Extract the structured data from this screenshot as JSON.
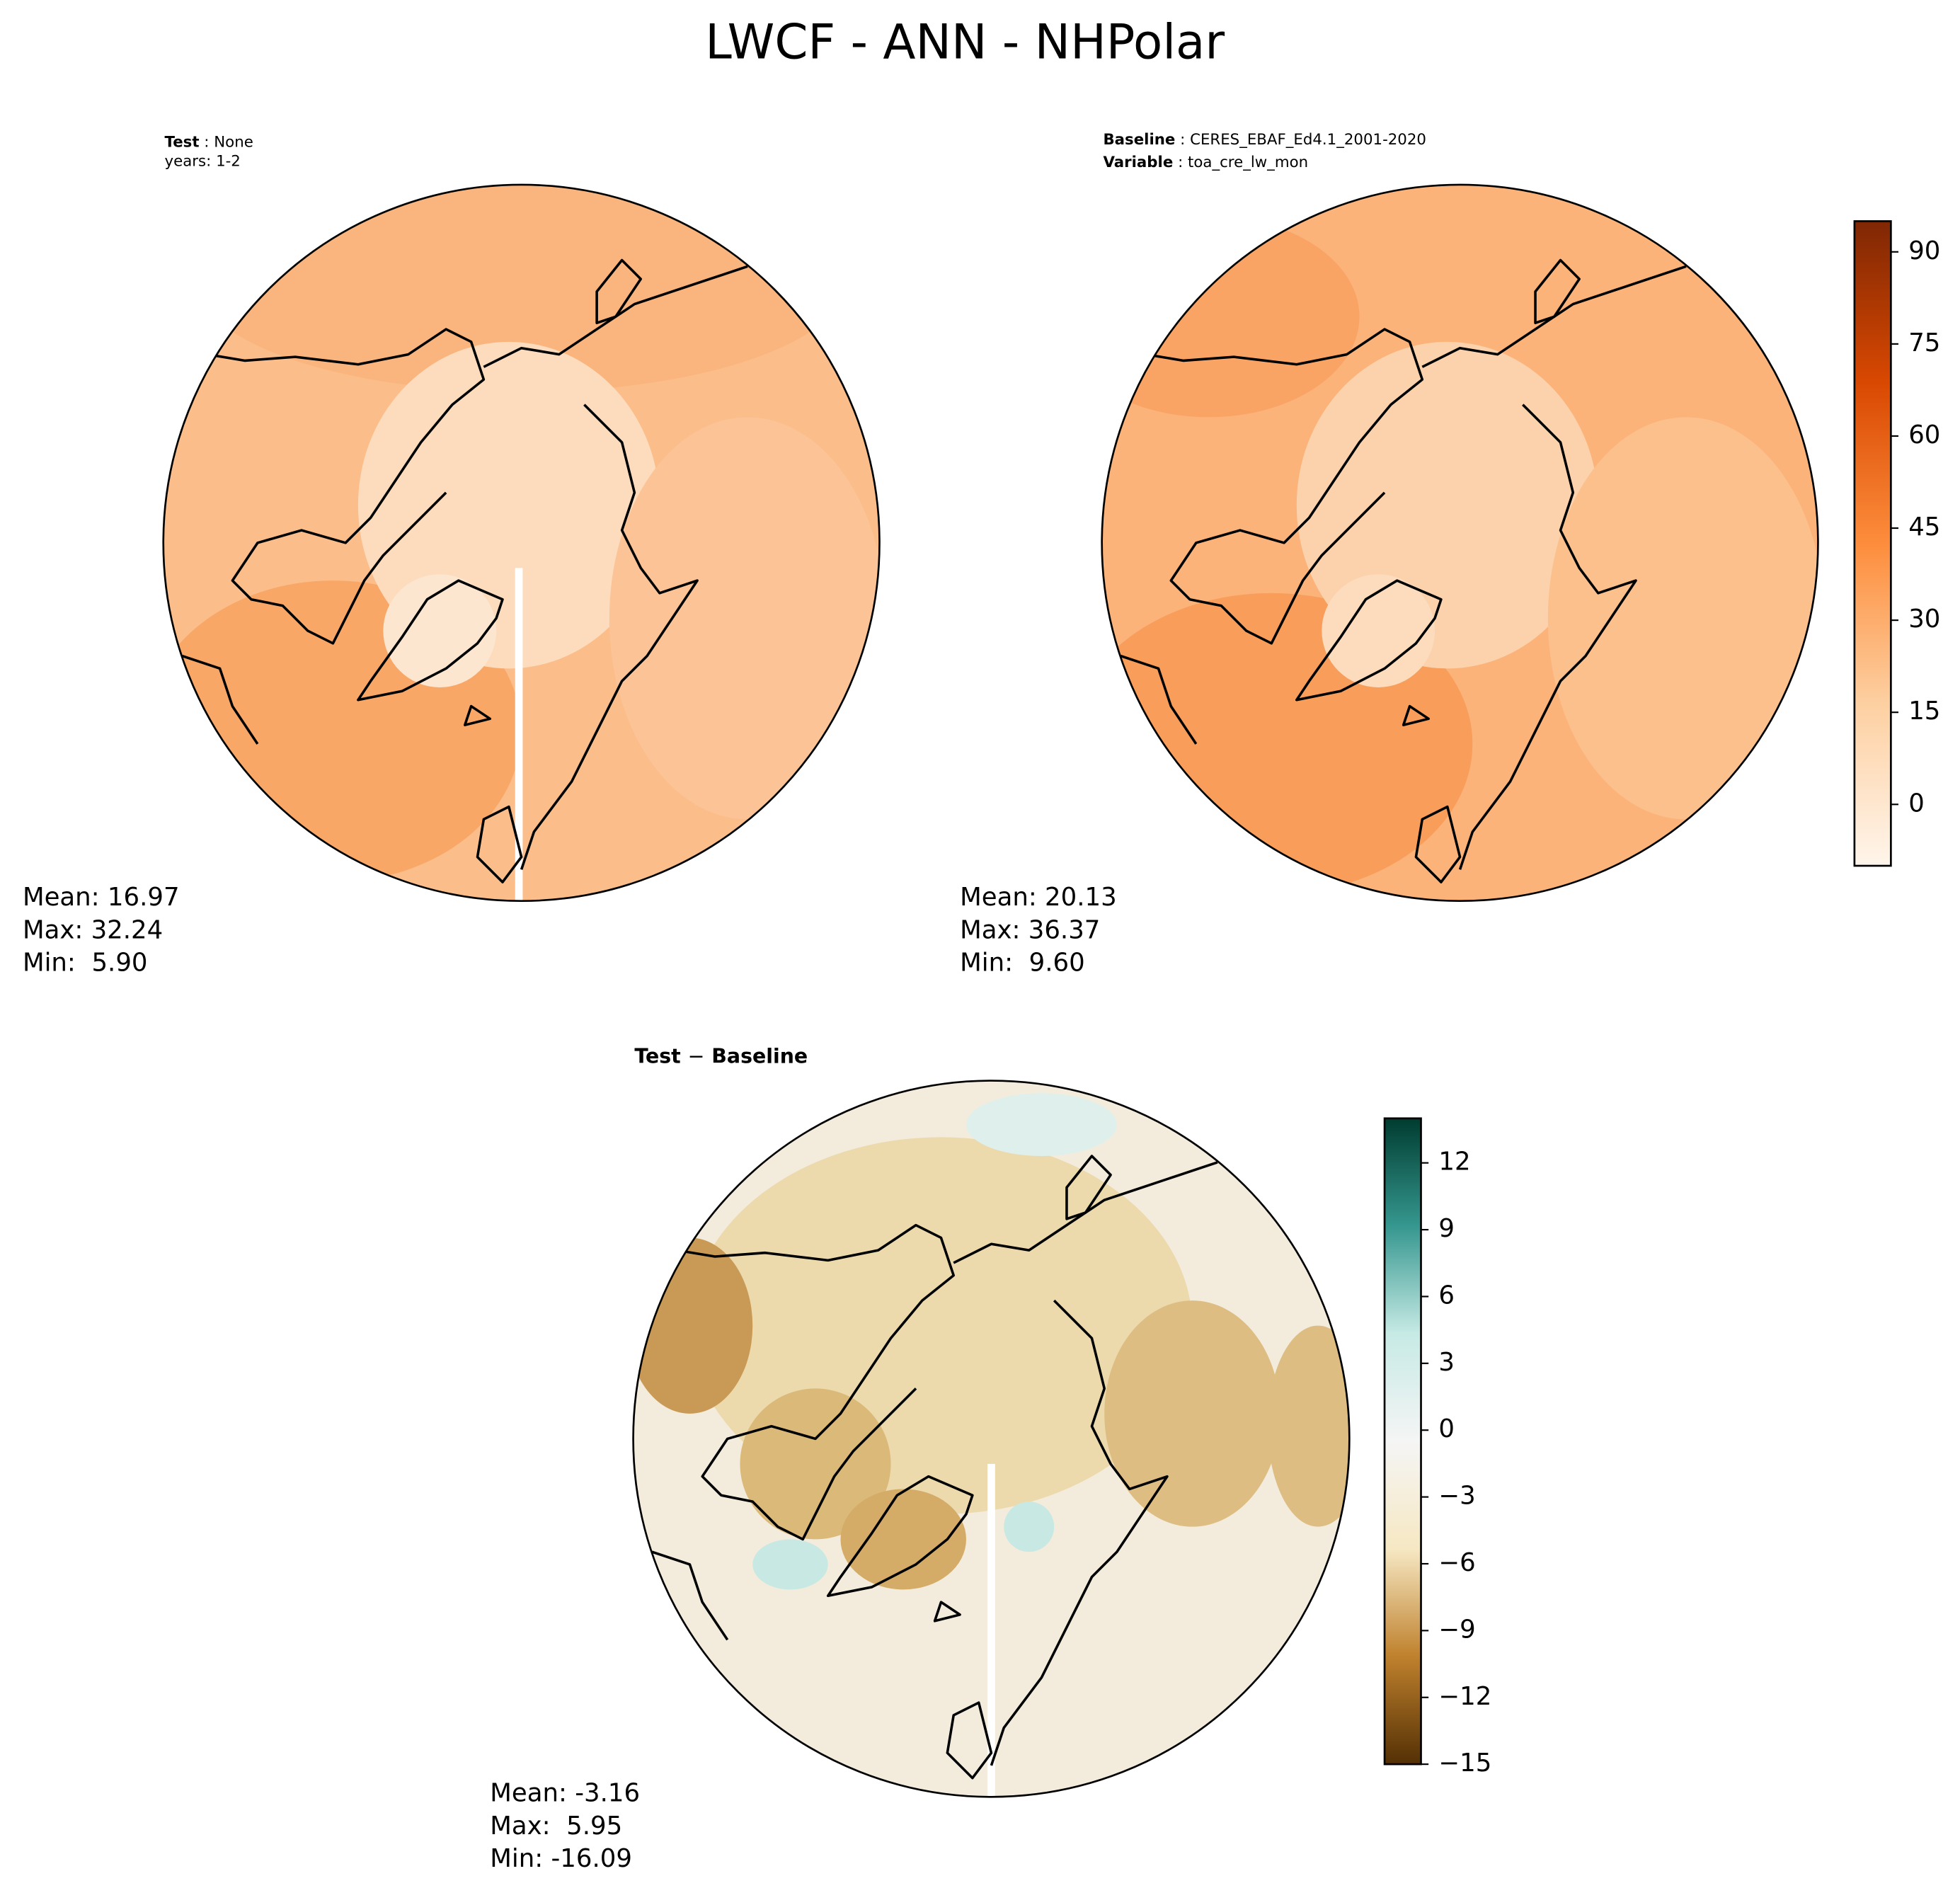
{
  "title": "LWCF - ANN - NHPolar",
  "panels": [
    {
      "header_key": "Test",
      "header_value": "None",
      "header_line2": "years: 1-2",
      "stats": [
        "Mean: 16.97",
        "Max: 32.24",
        "Min:  5.90"
      ]
    },
    {
      "header_key": "Baseline",
      "header_value": "CERES_EBAF_Ed4.1_2001-2020",
      "header_key2": "Variable",
      "header_value2": "toa_cre_lw_mon",
      "stats": [
        "Mean: 20.13",
        "Max: 36.37",
        "Min:  9.60"
      ]
    },
    {
      "header_key": "Test",
      "header_op": "−",
      "header_value": "Baseline",
      "stats": [
        "Mean: -3.16",
        "Max:  5.95",
        "Min: -16.09"
      ]
    }
  ],
  "colorbars": [
    {
      "lim": [
        -10,
        95
      ],
      "ticks": [
        0,
        15,
        30,
        45,
        60,
        75,
        90
      ],
      "colors": [
        "#fff5eb",
        "#fdd0a2",
        "#fd8d3c",
        "#d94801",
        "#7f2704"
      ]
    },
    {
      "lim": [
        -15,
        14
      ],
      "ticks": [
        {
          "value": -15,
          "label": "−15"
        },
        {
          "value": -12,
          "label": "−12"
        },
        {
          "value": -9,
          "label": "−9"
        },
        {
          "value": -6,
          "label": "−6"
        },
        {
          "value": -3,
          "label": "−3"
        },
        0,
        3,
        6,
        9,
        12
      ],
      "colors": [
        "#543005",
        "#bf812d",
        "#f6e8c3",
        "#f5f5f5",
        "#c7eae5",
        "#35978f",
        "#003c30"
      ]
    }
  ]
}
